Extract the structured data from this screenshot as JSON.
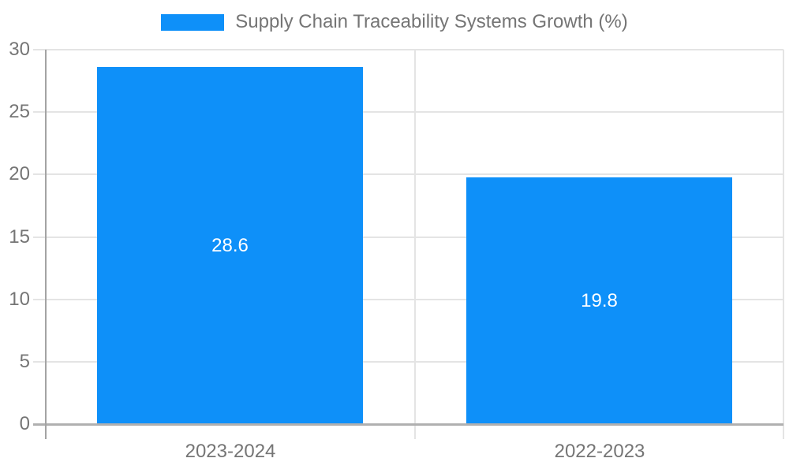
{
  "legend": {
    "label": "Supply Chain Traceability Systems Growth (%)"
  },
  "chart_data": {
    "type": "bar",
    "title": "Supply Chain Traceability Systems Growth (%)",
    "categories": [
      "2023-2024",
      "2022-2023"
    ],
    "values": [
      28.6,
      19.8
    ],
    "value_labels": [
      "28.6",
      "19.8"
    ],
    "ylim": [
      0,
      30
    ],
    "yticks": [
      0,
      5,
      10,
      15,
      20,
      25,
      30
    ],
    "xlabel": "",
    "ylabel": "",
    "grid": "on",
    "legend_position": "top-center",
    "value_label_position": "inside-center"
  },
  "colors": {
    "bar": "#0e90f9",
    "axis_text": "#757575",
    "gridline": "#e4e4e4",
    "baseline": "#b0b0b0",
    "axis_line": "#a3a3a3",
    "value_label": "#ffffff",
    "background": "#ffffff"
  }
}
